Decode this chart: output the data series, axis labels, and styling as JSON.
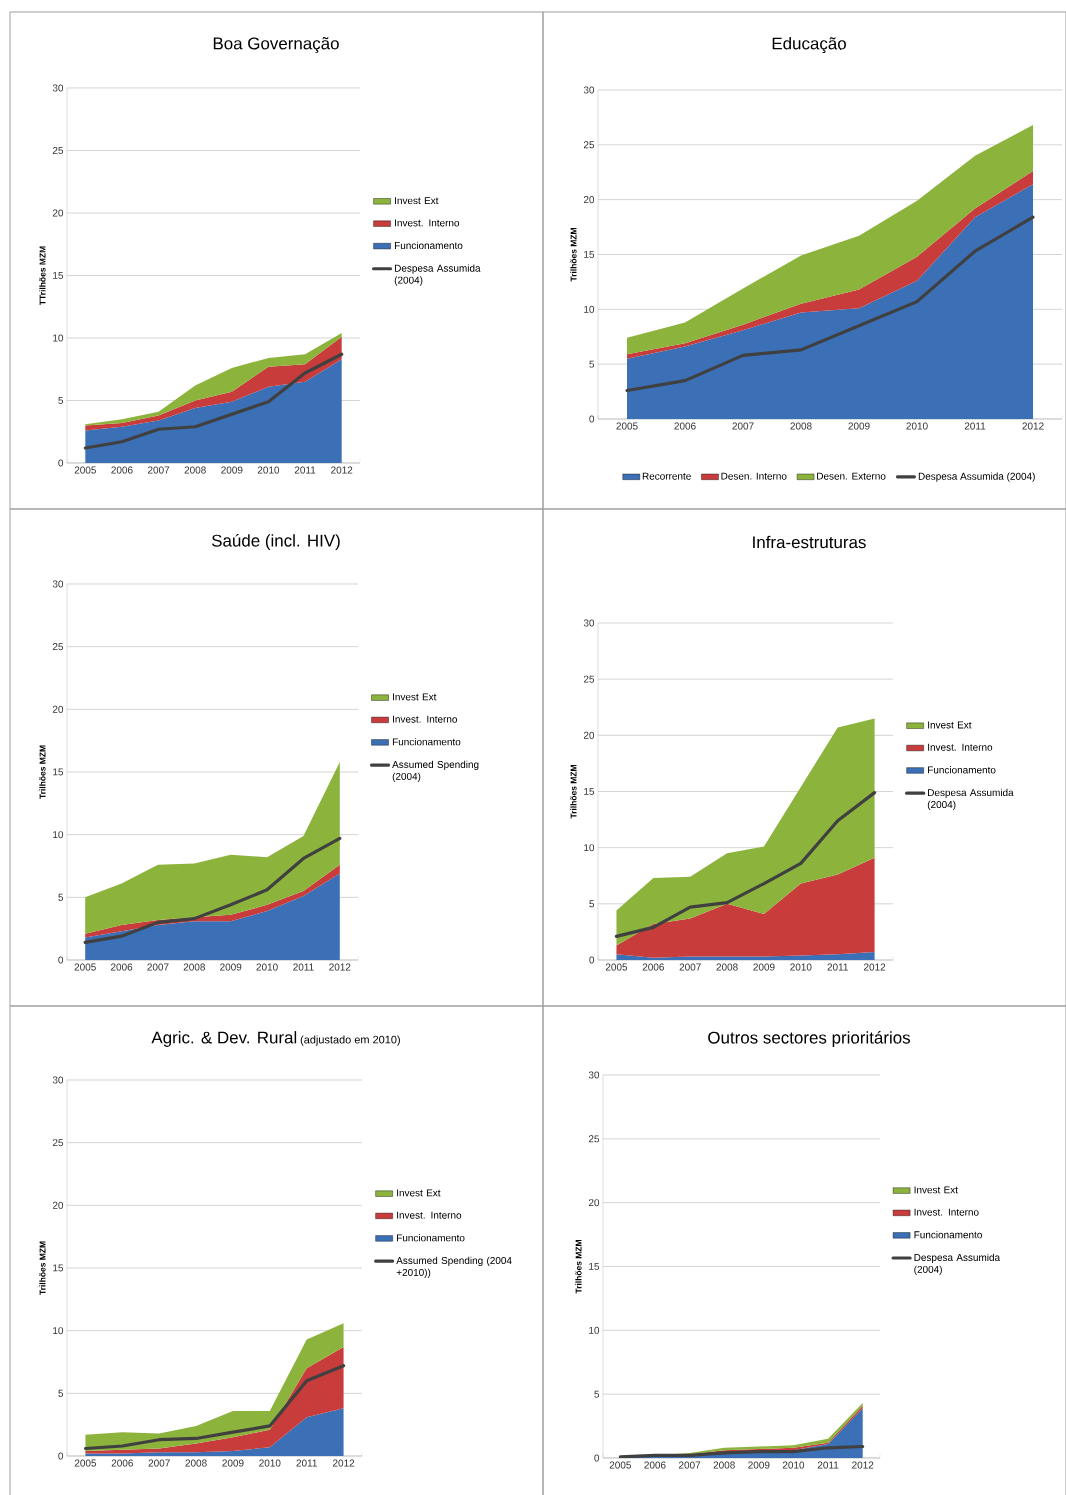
{
  "chart_data": [
    {
      "type": "area",
      "stacked": true,
      "title": "Boa Governação",
      "ylabel": "TTrilhões MZM",
      "categories": [
        "2005",
        "2006",
        "2007",
        "2008",
        "2009",
        "2010",
        "2011",
        "2012"
      ],
      "ylim": [
        0,
        30
      ],
      "yticks": [
        0,
        5,
        10,
        15,
        20,
        25,
        30
      ],
      "grid": "y",
      "legend": "right",
      "series": [
        {
          "name": "Funcionamento",
          "color": "#3b6fb6",
          "values": [
            2.6,
            2.9,
            3.4,
            4.4,
            4.9,
            6.1,
            6.5,
            8.3
          ]
        },
        {
          "name": "Invest. Interno",
          "color": "#c83c3c",
          "values": [
            0.4,
            0.3,
            0.4,
            0.6,
            0.8,
            1.6,
            1.4,
            1.8
          ]
        },
        {
          "name": "Invest Ext",
          "color": "#8cb43c",
          "values": [
            0.1,
            0.3,
            0.3,
            1.2,
            1.9,
            0.7,
            0.8,
            0.3
          ]
        },
        {
          "name": "Despesa Assumida (2004)",
          "type": "line",
          "color": "#404040",
          "values": [
            1.2,
            1.7,
            2.7,
            2.9,
            3.9,
            4.9,
            7.2,
            8.7
          ]
        }
      ]
    },
    {
      "type": "area",
      "stacked": true,
      "title": "Educação",
      "ylabel": "Trilhões MZM",
      "categories": [
        "2005",
        "2006",
        "2007",
        "2008",
        "2009",
        "2010",
        "2011",
        "2012"
      ],
      "ylim": [
        0,
        30
      ],
      "yticks": [
        0,
        5,
        10,
        15,
        20,
        25,
        30
      ],
      "grid": "y",
      "legend": "bottom",
      "series": [
        {
          "name": "Recorrente",
          "color": "#3b6fb6",
          "values": [
            5.5,
            6.6,
            8.1,
            9.7,
            10.1,
            12.6,
            18.4,
            21.4
          ]
        },
        {
          "name": "Desen. Interno",
          "color": "#c83c3c",
          "values": [
            0.4,
            0.3,
            0.5,
            0.8,
            1.7,
            2.2,
            0.8,
            1.2
          ]
        },
        {
          "name": "Desen. Externo",
          "color": "#8cb43c",
          "values": [
            1.5,
            1.9,
            3.3,
            4.4,
            4.9,
            5.1,
            4.8,
            4.2
          ]
        },
        {
          "name": "Despesa Assumida (2004)",
          "type": "line",
          "color": "#404040",
          "values": [
            2.6,
            3.5,
            5.8,
            6.3,
            8.5,
            10.7,
            15.3,
            18.4
          ]
        }
      ]
    },
    {
      "type": "area",
      "stacked": true,
      "title": "Saúde (incl. HIV)",
      "ylabel": "Trilhões MZM",
      "categories": [
        "2005",
        "2006",
        "2007",
        "2008",
        "2009",
        "2010",
        "2011",
        "2012"
      ],
      "ylim": [
        0,
        30
      ],
      "yticks": [
        0,
        5,
        10,
        15,
        20,
        25,
        30
      ],
      "grid": "y",
      "legend": "right",
      "series": [
        {
          "name": "Funcionamento",
          "color": "#3b6fb6",
          "values": [
            1.8,
            2.3,
            2.8,
            3.1,
            3.1,
            3.9,
            5.1,
            6.9
          ]
        },
        {
          "name": "Invest. Interno",
          "color": "#c83c3c",
          "values": [
            0.3,
            0.5,
            0.4,
            0.3,
            0.5,
            0.5,
            0.4,
            0.7
          ]
        },
        {
          "name": "Invest Ext",
          "color": "#8cb43c",
          "values": [
            2.9,
            3.3,
            4.4,
            4.3,
            4.8,
            3.8,
            4.4,
            8.2
          ]
        },
        {
          "name": "Assumed Spending (2004)",
          "type": "line",
          "color": "#404040",
          "values": [
            1.4,
            1.9,
            3.0,
            3.3,
            4.4,
            5.6,
            8.1,
            9.7
          ]
        }
      ]
    },
    {
      "type": "area",
      "stacked": true,
      "title": "Infra-estruturas",
      "ylabel": "Trilhões MZM",
      "categories": [
        "2005",
        "2006",
        "2007",
        "2008",
        "2009",
        "2010",
        "2011",
        "2012"
      ],
      "ylim": [
        0,
        30
      ],
      "yticks": [
        0,
        5,
        10,
        15,
        20,
        25,
        30
      ],
      "grid": "y",
      "legend": "right",
      "series": [
        {
          "name": "Funcionamento",
          "color": "#3b6fb6",
          "values": [
            0.5,
            0.2,
            0.3,
            0.3,
            0.3,
            0.4,
            0.5,
            0.7
          ]
        },
        {
          "name": "Invest. Interno",
          "color": "#c83c3c",
          "values": [
            0.8,
            3.0,
            3.4,
            4.7,
            3.8,
            6.4,
            7.1,
            8.4
          ]
        },
        {
          "name": "Invest Ext",
          "color": "#8cb43c",
          "values": [
            3.1,
            4.1,
            3.7,
            4.5,
            6.0,
            8.6,
            13.1,
            12.4
          ]
        },
        {
          "name": "Despesa Assumida (2004)",
          "type": "line",
          "color": "#404040",
          "values": [
            2.1,
            2.9,
            4.7,
            5.1,
            6.8,
            8.6,
            12.4,
            14.9
          ]
        }
      ]
    },
    {
      "type": "area",
      "stacked": true,
      "title": "Agric. & Dev. Rural",
      "subtitle": "(adjustado em 2010)",
      "ylabel": "Trilhões MZM",
      "categories": [
        "2005",
        "2006",
        "2007",
        "2008",
        "2009",
        "2010",
        "2011",
        "2012"
      ],
      "ylim": [
        0,
        30
      ],
      "yticks": [
        0,
        5,
        10,
        15,
        20,
        25,
        30
      ],
      "grid": "y",
      "legend": "right",
      "series": [
        {
          "name": "Funcionamento",
          "color": "#3b6fb6",
          "values": [
            0.2,
            0.2,
            0.3,
            0.3,
            0.4,
            0.7,
            3.1,
            3.8
          ]
        },
        {
          "name": "Invest. Interno",
          "color": "#c83c3c",
          "values": [
            0.2,
            0.3,
            0.3,
            0.7,
            1.1,
            1.4,
            3.9,
            4.9
          ]
        },
        {
          "name": "Invest Ext",
          "color": "#8cb43c",
          "values": [
            1.3,
            1.4,
            1.2,
            1.4,
            2.1,
            1.5,
            2.3,
            1.9
          ]
        },
        {
          "name": "Assumed Spending (2004 +2010))",
          "type": "line",
          "color": "#404040",
          "values": [
            0.6,
            0.8,
            1.3,
            1.4,
            1.9,
            2.4,
            6.0,
            7.2
          ]
        }
      ]
    },
    {
      "type": "area",
      "stacked": true,
      "title": "Outros sectores prioritários",
      "ylabel": "Trilhões MZM",
      "categories": [
        "2005",
        "2006",
        "2007",
        "2008",
        "2009",
        "2010",
        "2011",
        "2012"
      ],
      "ylim": [
        0,
        30
      ],
      "yticks": [
        0,
        5,
        10,
        15,
        20,
        25,
        30
      ],
      "grid": "y",
      "legend": "right",
      "series": [
        {
          "name": "Funcionamento",
          "color": "#3b6fb6",
          "values": [
            0.1,
            0.2,
            0.2,
            0.4,
            0.5,
            0.6,
            1.1,
            3.9
          ]
        },
        {
          "name": "Invest. Interno",
          "color": "#c83c3c",
          "values": [
            0,
            0,
            0.1,
            0.2,
            0.2,
            0.2,
            0.1,
            0.2
          ]
        },
        {
          "name": "Invest Ext",
          "color": "#8cb43c",
          "values": [
            0,
            0,
            0.1,
            0.2,
            0.2,
            0.2,
            0.3,
            0.2
          ]
        },
        {
          "name": "Despesa Assumida (2004)",
          "type": "line",
          "color": "#404040",
          "values": [
            0.1,
            0.2,
            0.2,
            0.4,
            0.5,
            0.5,
            0.8,
            0.9
          ]
        }
      ]
    }
  ]
}
